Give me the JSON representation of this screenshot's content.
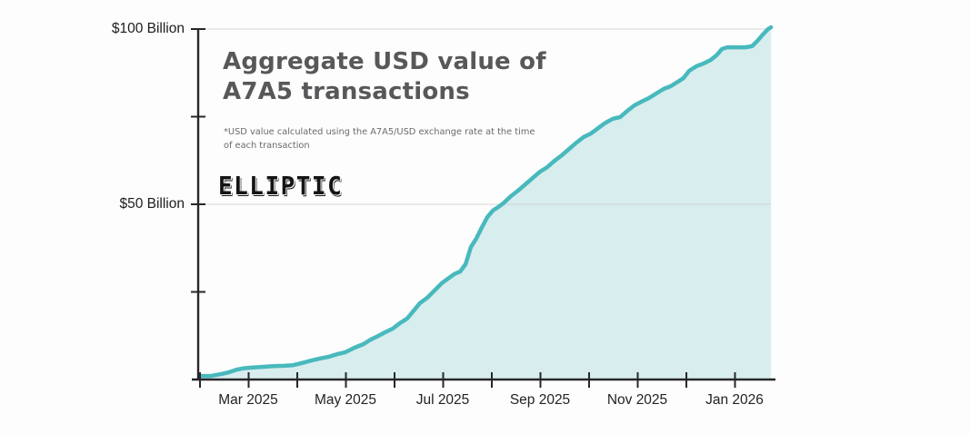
{
  "chart": {
    "title_line1": "Aggregate USD value of",
    "title_line2": "A7A5 transactions",
    "subtitle": "*USD value calculated using the A7A5/USD exchange rate at the time of each transaction",
    "logo_text": "ELLIPTIC"
  },
  "chart_data": {
    "type": "area",
    "title": "Aggregate USD value of A7A5 transactions",
    "footnote": "*USD value calculated using the A7A5/USD exchange rate at the time of each transaction",
    "unit": "USD Billion",
    "ylim": [
      0,
      100
    ],
    "grid_values": [
      50,
      100
    ],
    "y_axis_ticks": [
      25,
      50,
      75,
      100
    ],
    "y_labels": [
      {
        "value": 100,
        "text": "$100 Billion"
      },
      {
        "value": 50,
        "text": "$50 Billion"
      }
    ],
    "x_tick_count": 12,
    "x_labels": [
      {
        "t": 1,
        "text": "Mar 2025"
      },
      {
        "t": 3,
        "text": "May 2025"
      },
      {
        "t": 5,
        "text": "Jul 2025"
      },
      {
        "t": 7,
        "text": "Sep 2025"
      },
      {
        "t": 9,
        "text": "Nov 2025"
      },
      {
        "t": 11,
        "text": "Jan 2026"
      }
    ],
    "x_end_t": 11.74,
    "line_color": "#48b9bd",
    "fill_color": "#d8edee",
    "grid_color": "#c9c9c9",
    "axis_color": "#27272b",
    "monthly_values_billion": [
      {
        "month": "Feb 2025",
        "value": 1.0
      },
      {
        "month": "Mar 2025",
        "value": 3.4
      },
      {
        "month": "Apr 2025",
        "value": 4.3
      },
      {
        "month": "May 2025",
        "value": 7.8
      },
      {
        "month": "Jun 2025",
        "value": 15.0
      },
      {
        "month": "Jul 2025",
        "value": 27.5
      },
      {
        "month": "Aug 2025",
        "value": 48.1
      },
      {
        "month": "Sep 2025",
        "value": 59.3
      },
      {
        "month": "Oct 2025",
        "value": 70.2
      },
      {
        "month": "Nov 2025",
        "value": 78.8
      },
      {
        "month": "Dec 2025",
        "value": 86.0
      },
      {
        "month": "Jan 2026",
        "value": 94.8
      },
      {
        "month": "Feb 2026",
        "value": 100.5
      }
    ],
    "points": [
      [
        0,
        1.0
      ],
      [
        0.22,
        1.0
      ],
      [
        0.45,
        1.6
      ],
      [
        0.6,
        2.1
      ],
      [
        0.75,
        2.8
      ],
      [
        0.9,
        3.2
      ],
      [
        1.05,
        3.4
      ],
      [
        1.27,
        3.6
      ],
      [
        1.5,
        3.8
      ],
      [
        1.72,
        3.9
      ],
      [
        1.91,
        4.1
      ],
      [
        2.09,
        4.7
      ],
      [
        2.28,
        5.4
      ],
      [
        2.47,
        6.0
      ],
      [
        2.65,
        6.5
      ],
      [
        2.84,
        7.3
      ],
      [
        2.99,
        7.8
      ],
      [
        3.18,
        9.1
      ],
      [
        3.36,
        10.1
      ],
      [
        3.51,
        11.4
      ],
      [
        3.66,
        12.4
      ],
      [
        3.81,
        13.5
      ],
      [
        3.96,
        14.5
      ],
      [
        4.11,
        16.1
      ],
      [
        4.26,
        17.4
      ],
      [
        4.41,
        19.9
      ],
      [
        4.52,
        21.8
      ],
      [
        4.67,
        23.3
      ],
      [
        4.82,
        25.4
      ],
      [
        4.97,
        27.5
      ],
      [
        5.12,
        29.0
      ],
      [
        5.23,
        30.1
      ],
      [
        5.35,
        30.8
      ],
      [
        5.46,
        32.9
      ],
      [
        5.57,
        37.8
      ],
      [
        5.68,
        40.2
      ],
      [
        5.79,
        43.3
      ],
      [
        5.91,
        46.4
      ],
      [
        6.02,
        48.2
      ],
      [
        6.13,
        49.2
      ],
      [
        6.24,
        50.3
      ],
      [
        6.39,
        52.3
      ],
      [
        6.54,
        53.9
      ],
      [
        6.69,
        55.7
      ],
      [
        6.84,
        57.5
      ],
      [
        6.99,
        59.3
      ],
      [
        7.14,
        60.6
      ],
      [
        7.29,
        62.4
      ],
      [
        7.44,
        64.0
      ],
      [
        7.59,
        65.8
      ],
      [
        7.74,
        67.6
      ],
      [
        7.89,
        69.2
      ],
      [
        8.04,
        70.2
      ],
      [
        8.19,
        71.8
      ],
      [
        8.34,
        73.3
      ],
      [
        8.49,
        74.4
      ],
      [
        8.64,
        74.9
      ],
      [
        8.79,
        76.7
      ],
      [
        8.93,
        78.2
      ],
      [
        9.08,
        79.3
      ],
      [
        9.23,
        80.3
      ],
      [
        9.38,
        81.6
      ],
      [
        9.53,
        82.9
      ],
      [
        9.68,
        83.7
      ],
      [
        9.83,
        85.0
      ],
      [
        9.94,
        86.0
      ],
      [
        10.06,
        88.1
      ],
      [
        10.21,
        89.4
      ],
      [
        10.36,
        90.2
      ],
      [
        10.5,
        91.2
      ],
      [
        10.62,
        92.5
      ],
      [
        10.73,
        94.3
      ],
      [
        10.84,
        94.8
      ],
      [
        11.03,
        94.8
      ],
      [
        11.21,
        94.8
      ],
      [
        11.35,
        95.1
      ],
      [
        11.46,
        96.6
      ],
      [
        11.57,
        98.4
      ],
      [
        11.68,
        100.0
      ],
      [
        11.74,
        100.5
      ]
    ]
  }
}
